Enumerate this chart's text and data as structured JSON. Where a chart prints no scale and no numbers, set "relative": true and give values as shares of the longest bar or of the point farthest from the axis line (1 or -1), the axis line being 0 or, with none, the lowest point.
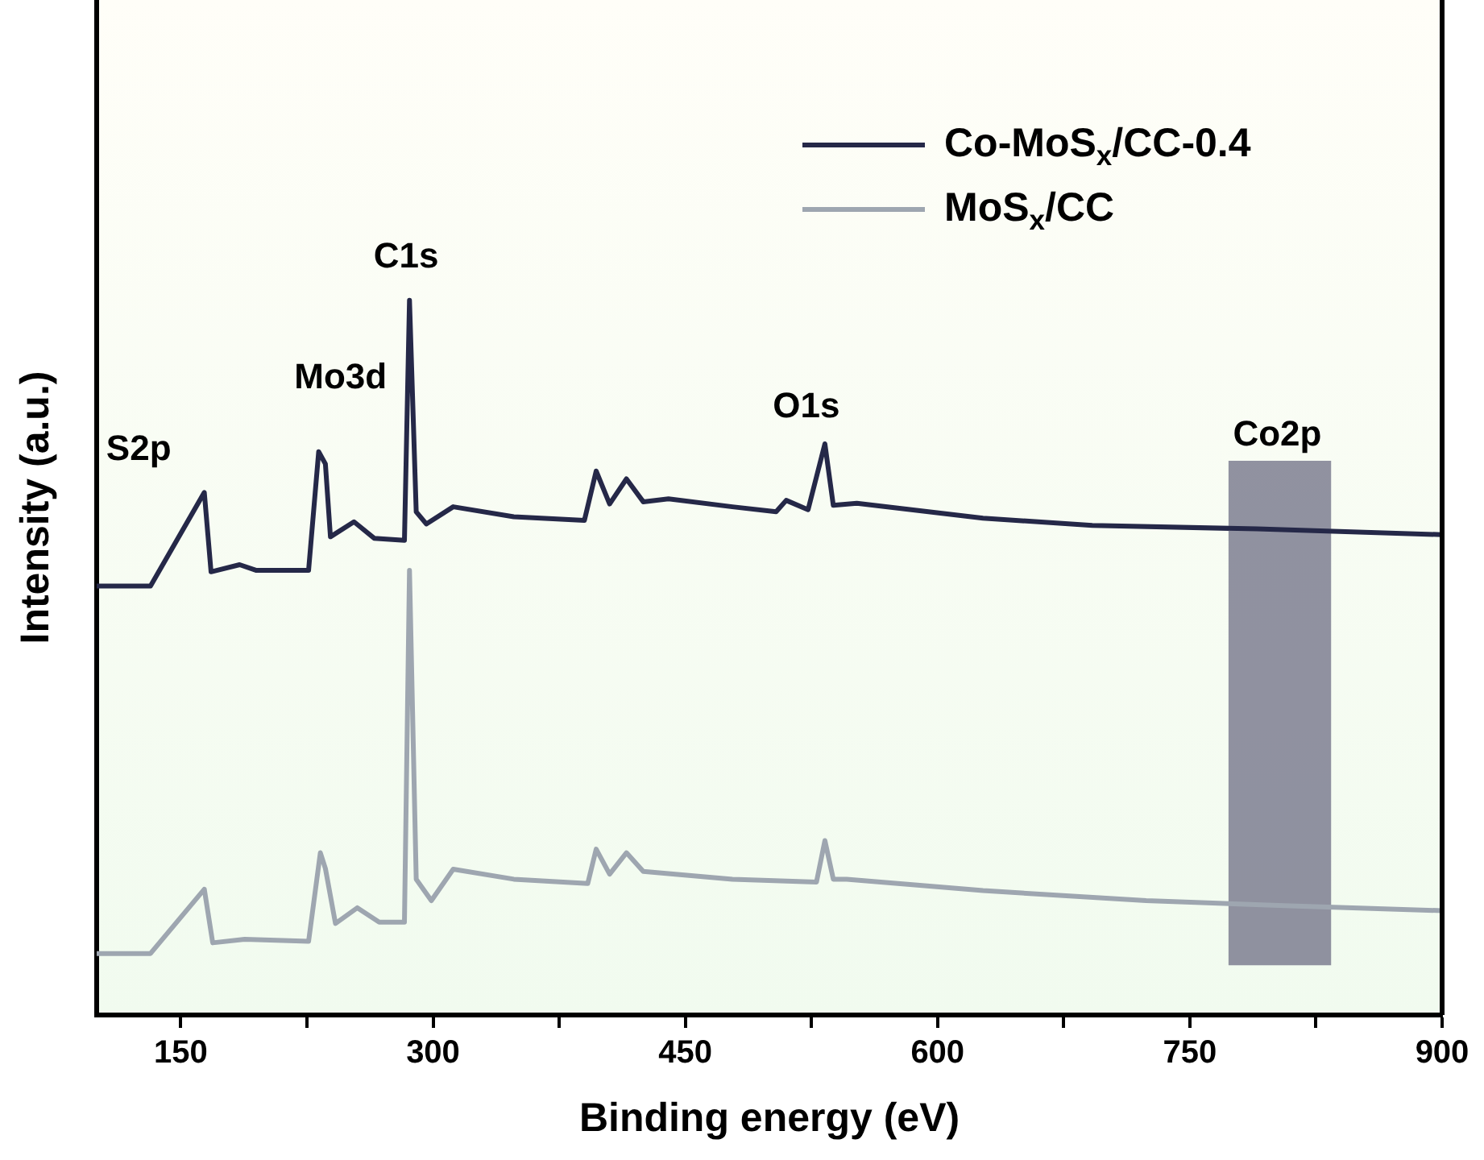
{
  "chart_data": {
    "type": "line",
    "xlabel": "Binding energy (eV)",
    "ylabel": "Intensity (a.u.)",
    "relative": true,
    "xlim": [
      100,
      900
    ],
    "xticks": [
      150,
      {
        "value": 225,
        "label": null
      },
      300,
      {
        "value": 375,
        "label": null
      },
      450,
      {
        "value": 525,
        "label": null
      },
      600,
      {
        "value": 675,
        "label": null
      },
      750,
      {
        "value": 825,
        "label": null
      },
      900
    ],
    "legend": "top right",
    "grid": false,
    "marker": "none",
    "line_style": "solid",
    "series": [
      {
        "name": "Co-MoS$_{x}$/CC-0.4",
        "color": "#252848",
        "x": [
          100,
          132,
          164,
          168,
          185,
          195,
          226,
          232,
          236,
          239,
          253,
          265,
          283,
          286,
          290,
          296,
          312,
          348,
          390,
          397,
          405,
          415,
          425,
          440,
          478,
          504,
          510,
          523,
          533,
          538,
          552,
          627,
          692,
          790,
          900
        ],
        "values": [
          0.6,
          0.6,
          0.731,
          0.62,
          0.63,
          0.622,
          0.622,
          0.788,
          0.771,
          0.669,
          0.69,
          0.667,
          0.664,
          1,
          0.704,
          0.687,
          0.711,
          0.697,
          0.692,
          0.761,
          0.715,
          0.75,
          0.718,
          0.722,
          0.711,
          0.704,
          0.72,
          0.707,
          0.799,
          0.713,
          0.716,
          0.695,
          0.685,
          0.68,
          0.672
        ]
      },
      {
        "name": "MoS$_{x}$/CC",
        "color": "#9ea6b0",
        "x": [
          100,
          132,
          164,
          169,
          188,
          226,
          233,
          236,
          242,
          255,
          268,
          283,
          286,
          290,
          299,
          312,
          348,
          392,
          397,
          405,
          415,
          425,
          478,
          528,
          533,
          538,
          546,
          627,
          724,
          806,
          900
        ],
        "values": [
          0.086,
          0.086,
          0.176,
          0.101,
          0.106,
          0.103,
          0.227,
          0.205,
          0.128,
          0.15,
          0.13,
          0.13,
          0.622,
          0.19,
          0.16,
          0.204,
          0.19,
          0.184,
          0.232,
          0.197,
          0.227,
          0.201,
          0.19,
          0.186,
          0.244,
          0.19,
          0.19,
          0.174,
          0.16,
          0.153,
          0.146
        ]
      }
    ],
    "bands": [
      {
        "axis": "x",
        "from": 773,
        "to": 834,
        "color": "#6e6e84"
      }
    ],
    "annotations": [
      "S2p",
      "Mo3d",
      "C1s",
      "O1s",
      "Co2p"
    ]
  }
}
